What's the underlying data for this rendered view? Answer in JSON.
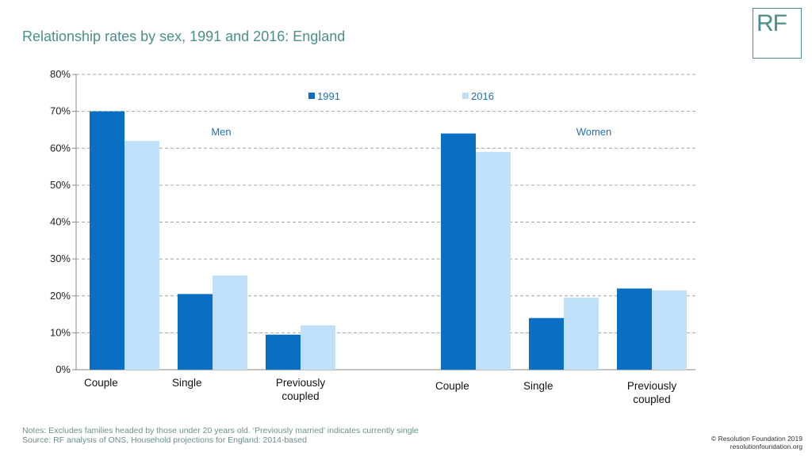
{
  "title": "Relationship rates by sex, 1991 and 2016: England",
  "logo_text": "RF",
  "notes": {
    "line1": "Notes: Excludes families headed by those under 20 years old. ‘Previously married’ indicates currently single",
    "line2": "Source: RF analysis of ONS, Household projections for England: 2014-based"
  },
  "copyright": {
    "line1": "© Resolution Foundation 2019",
    "line2": "resolutionfoundation.org"
  },
  "colors": {
    "series_1991": "#0a6fc2",
    "series_2016": "#bfe0f8",
    "grid": "#a6a6a6",
    "accent": "#4a8f8b"
  },
  "chart_data": {
    "type": "bar",
    "ylim": [
      0,
      80
    ],
    "yticks": [
      0,
      10,
      20,
      30,
      40,
      50,
      60,
      70,
      80
    ],
    "ytick_labels": [
      "0%",
      "10%",
      "20%",
      "30%",
      "40%",
      "50%",
      "60%",
      "70%",
      "80%"
    ],
    "grid": true,
    "legend_position": "top-center",
    "groups": [
      {
        "label": "Men",
        "categories": [
          [
            "Couple"
          ],
          [
            "Single"
          ],
          [
            "Previously",
            "coupled"
          ]
        ],
        "series": [
          {
            "name": "1991",
            "values": [
              70,
              20.5,
              9.5
            ]
          },
          {
            "name": "2016",
            "values": [
              62,
              25.5,
              12
            ]
          }
        ]
      },
      {
        "label": "Women",
        "categories": [
          [
            "Couple"
          ],
          [
            "Single"
          ],
          [
            "Previously",
            "coupled"
          ]
        ],
        "series": [
          {
            "name": "1991",
            "values": [
              64,
              14,
              22
            ]
          },
          {
            "name": "2016",
            "values": [
              59,
              19.5,
              21.5
            ]
          }
        ]
      }
    ]
  }
}
